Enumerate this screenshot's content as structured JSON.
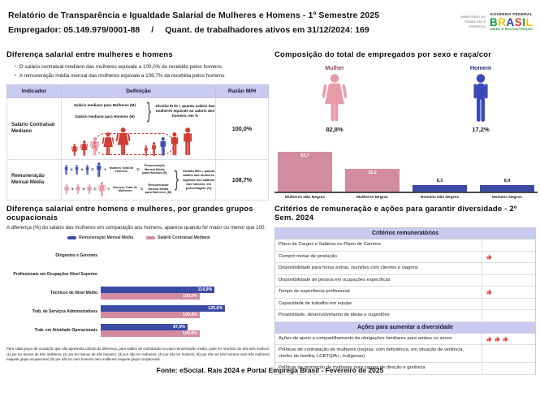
{
  "header": {
    "title": "Relatório de Transparência e Igualdade Salarial de Mulheres e Homens - 1º Semestre 2025",
    "employer": "Empregador: 05.149.979/0001-88",
    "separator": "/",
    "active_workers": "Quant. de trabalhadores ativos em 31/12/2024: 169",
    "logo": {
      "ministry": "MINISTÉRIO DO TRABALHO E EMPREGO",
      "gov": "GOVERNO FEDERAL",
      "brand": "BRASIL",
      "motto": "UNIÃO E RECONSTRUÇÃO"
    }
  },
  "salary_gap": {
    "title": "Diferença salarial entre mulheres e homens",
    "bullets": [
      "O salário contratual mediano das mulheres equivale a 100,0% do recebido pelos homens.",
      "A remuneração média mensal das mulheres equivale a 108,7% da recebida pelos homens."
    ],
    "table": {
      "headers": [
        "Indicador",
        "Definição",
        "Razão M/H"
      ],
      "rows": [
        {
          "indicator": "Salário Contratual Mediano",
          "ratio": "100,0%",
          "def_labels": [
            "Salário mediano para Mulheres (M)",
            "Salário mediano para Homens (H)"
          ],
          "def_note": "Divisão M /H = quanto salário das mulheres equivale ao salário dos homens, em %"
        },
        {
          "indicator": "Remuneração Mensal Média",
          "ratio": "108,7%",
          "men_total_label": "Número Total de Homens",
          "men_result_label": "Remuneração Mensal Média para Homens (H)",
          "women_total_label": "Número Total de Mulheres",
          "women_result_label": "Remuneração Mensal Média para Mulheres (M)",
          "def_note": "Divisão M/H = quanto salário das mulheres equivale aos salários dos homens, em porcentagem (%)"
        }
      ]
    },
    "operators": {
      "plus": "+",
      "equals": "=",
      "divide": "÷"
    }
  },
  "composition": {
    "title": "Composição do total de empregados por sexo e raça/cor",
    "female": {
      "label": "Mulher",
      "value": "82,8%"
    },
    "male": {
      "label": "Homem",
      "value": "17,2%"
    }
  },
  "occupational": {
    "title": "Diferença salarial entre homens e mulheres, por grandes grupos ocupacionais",
    "subtitle": "A diferença (%) do salário das mulheres em comparação aos homens, aparece quando for maior ou menor que 100:",
    "legend": [
      "Remuneração Mensal Média",
      "Salário Contratual Mediano"
    ],
    "footnote": "Para cada grupo de ocupação que não apresenta cálculo da diferença, para salário de contratação ou para remuneração média, pode ter ocorrido um dos seis motivos: (1) por ter menos de três mulheres; (2) por ter menos de três homens; (3) por não ter mulheres; (4) por não ter homens; (5) por não ter três homens nem três mulheres naquele grupo ocupacional; (6) por não ter nem homens nem mulheres naquele grupo ocupacional."
  },
  "criteria": {
    "title": "Critérios de remuneração e ações para garantir diversidade - 2º Sem. 2024",
    "sections": [
      {
        "header": "Critérios remuneratórios",
        "rows": [
          {
            "label": "Plano de Cargos e Salários ou Plano de Carreira",
            "marks": 0
          },
          {
            "label": "Cumprir metas de produção",
            "marks": 1
          },
          {
            "label": "Disponibilidade para horas extras, reuniões com clientes e viagens",
            "marks": 0
          },
          {
            "label": "Disponibilidade de pessoa em ocupações específicas",
            "marks": 0
          },
          {
            "label": "Tempo de experiência profissional",
            "marks": 1
          },
          {
            "label": "Capacidade de trabalho em equipe",
            "marks": 0
          },
          {
            "label": "Proatividade, desenvolvimento de ideias e sugestões",
            "marks": 0
          }
        ]
      },
      {
        "header": "Ações para aumentar a diversidade",
        "rows": [
          {
            "label": "Ações de apoio a compartilhamento de obrigações familiares para ambos os sexos",
            "marks": 3
          },
          {
            "label": "Políticas de contratação de mulheres (negras, com deficiência, em situação de violência, chefes de família, LGBTQIA+, Indígenas)",
            "marks": 0
          },
          {
            "label": "Políticas de promoção de mulheres para cargos de direção e gerência",
            "marks": 0
          }
        ]
      }
    ]
  },
  "footer": {
    "source": "Fonte: eSocial. Rais 2024 e Portal Emprega Brasil - Fevereiro de 2025"
  },
  "chart_data": [
    {
      "type": "bar",
      "title": "Composição do total de empregados por sexo e raça/cor",
      "categories": [
        "Mulheres Não Negras",
        "Mulheres Negras",
        "Homens Não Negros",
        "Homens Negros"
      ],
      "values": [
        52.7,
        30.2,
        8.3,
        8.9
      ],
      "value_labels": [
        "52,7",
        "30,2",
        "8,3",
        "8,9"
      ],
      "bar_colors": [
        "#d28ca0",
        "#d28ca0",
        "#3b4aa2",
        "#3b4aa2"
      ],
      "xlabel": "",
      "ylabel": "",
      "ylim": [
        0,
        60
      ],
      "grid": false,
      "legend_position": "none"
    },
    {
      "type": "bar",
      "orientation": "horizontal",
      "title": "Diferença salarial entre homens e mulheres, por grandes grupos ocupacionais",
      "categories": [
        "Dirigentes e Gerentes",
        "Profissionais em Ocupações Nível Superior",
        "Técnicos de Nível Médio",
        "Trab. de Serviços Administrativos",
        "Trab. em Atividade Operacionais"
      ],
      "series": [
        {
          "name": "Remuneração Mensal Média",
          "color": "#3b4aa2",
          "values": [
            null,
            null,
            114.9,
            125.6,
            87.9
          ],
          "value_labels": [
            "",
            "",
            "114,9%",
            "125,6%",
            "87,9%"
          ]
        },
        {
          "name": "Salário Contratual Mediano",
          "color": "#d28ca0",
          "values": [
            null,
            null,
            100.0,
            100.0,
            100.0
          ],
          "value_labels": [
            "",
            "",
            "100,0%",
            "100,0%",
            "100,0%"
          ]
        }
      ],
      "xlim": [
        0,
        140
      ],
      "grid": false,
      "legend_position": "top"
    }
  ],
  "colors": {
    "lavender_header": "#c9caf0",
    "bar_pink": "#d28ca0",
    "bar_blue": "#3b4aa2",
    "figure_red": "#d23b33",
    "figure_pink": "#e79aa8",
    "figure_blue": "#3947b8",
    "mark_red": "#e2453c",
    "brand_palette": [
      "#1b9e4b",
      "#f2c200",
      "#2a3f9e",
      "#e03c31",
      "#1b9e4b",
      "#f2c200"
    ]
  },
  "icons": {
    "female": "person-female-silhouette",
    "male": "person-male-silhouette",
    "criteria_mark": "thumbs-up",
    "bullet": "•"
  }
}
